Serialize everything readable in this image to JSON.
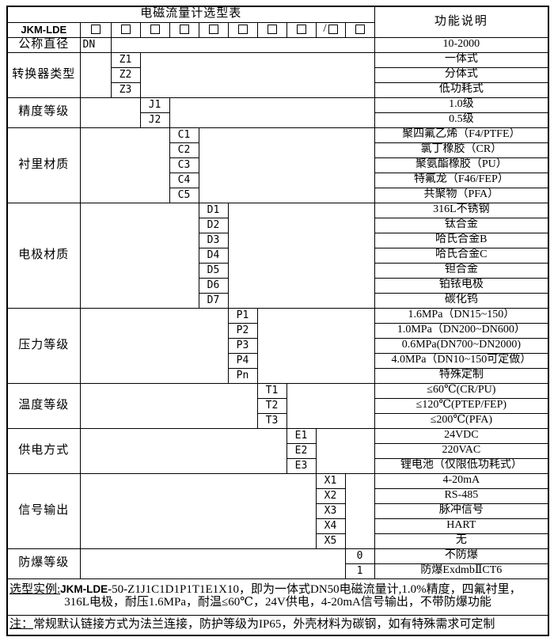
{
  "colors": {
    "background": "#ffffff",
    "border": "#000000",
    "text": "#000000"
  },
  "table": {
    "title": "电磁流量计选型表",
    "function_header": "功能说明",
    "model_prefix": "JKM-LDE",
    "checkbox_count": 10,
    "slash": "/",
    "slash_cell": 9
  },
  "groups": [
    {
      "label": "公称直径",
      "col": 1,
      "rows": [
        {
          "code": "DN",
          "desc": "10-2000"
        }
      ]
    },
    {
      "label": "转换器类型",
      "col": 2,
      "rows": [
        {
          "code": "Z1",
          "desc": "一体式"
        },
        {
          "code": "Z2",
          "desc": "分体式"
        },
        {
          "code": "Z3",
          "desc": "低功耗式"
        }
      ]
    },
    {
      "label": "精度等级",
      "col": 3,
      "rows": [
        {
          "code": "J1",
          "desc": "1.0级"
        },
        {
          "code": "J2",
          "desc": "0.5级"
        }
      ]
    },
    {
      "label": "衬里材质",
      "col": 4,
      "rows": [
        {
          "code": "C1",
          "desc": "聚四氟乙烯（F4/PTFE）"
        },
        {
          "code": "C2",
          "desc": "氯丁橡胶（CR）"
        },
        {
          "code": "C3",
          "desc": "聚氨酯橡胶（PU）"
        },
        {
          "code": "C4",
          "desc": "特氟龙（F46/FEP）"
        },
        {
          "code": "C5",
          "desc": "共聚物（PFA）"
        }
      ]
    },
    {
      "label": "电极材质",
      "col": 5,
      "rows": [
        {
          "code": "D1",
          "desc": "316L不锈钢"
        },
        {
          "code": "D2",
          "desc": "钛合金"
        },
        {
          "code": "D3",
          "desc": "哈氏合金B"
        },
        {
          "code": "D4",
          "desc": "哈氏合金C"
        },
        {
          "code": "D5",
          "desc": "钽合金"
        },
        {
          "code": "D6",
          "desc": "铂铱电极"
        },
        {
          "code": "D7",
          "desc": "碳化钨"
        }
      ]
    },
    {
      "label": "压力等级",
      "col": 6,
      "rows": [
        {
          "code": "P1",
          "desc": "1.6MPa（DN15~150）"
        },
        {
          "code": "P2",
          "desc": "1.0MPa（DN200~DN600）"
        },
        {
          "code": "P3",
          "desc": "0.6MPa(DN700~DN2000)"
        },
        {
          "code": "P4",
          "desc": "4.0MPa（DN10~150可定做）"
        },
        {
          "code": "Pn",
          "desc": "特殊定制"
        }
      ]
    },
    {
      "label": "温度等级",
      "col": 7,
      "rows": [
        {
          "code": "T1",
          "desc": "≤60℃(CR/PU)"
        },
        {
          "code": "T2",
          "desc": "≤120℃(PTEP/FEP)"
        },
        {
          "code": "T3",
          "desc": "≤200℃(PFA)"
        }
      ]
    },
    {
      "label": "供电方式",
      "col": 8,
      "rows": [
        {
          "code": "E1",
          "desc": "24VDC"
        },
        {
          "code": "E2",
          "desc": "220VAC"
        },
        {
          "code": "E3",
          "desc": "锂电池（仅限低功耗式）"
        }
      ]
    },
    {
      "label": "信号输出",
      "col": 9,
      "rows": [
        {
          "code": "X1",
          "desc": "4-20mA"
        },
        {
          "code": "X2",
          "desc": "RS-485"
        },
        {
          "code": "X3",
          "desc": "脉冲信号"
        },
        {
          "code": "X4",
          "desc": "HART"
        },
        {
          "code": "X5",
          "desc": "无"
        }
      ]
    },
    {
      "label": "防爆等级",
      "col": 10,
      "rows": [
        {
          "code": "0",
          "desc": "不防爆"
        },
        {
          "code": "1",
          "desc": "防爆ExdmbⅡCT6"
        }
      ]
    }
  ],
  "example": {
    "prefix": "选型实例:",
    "model": "JKM-LDE",
    "line1_rest": "-50-Z1J1C1D1P1T1E1X10，即为一体式DN50电磁流量计,1.0%精度，四氟衬里，",
    "line2": "316L电极，耐压1.6MPa，耐温≤60℃，24V供电，4-20mA信号输出，不带防爆功能"
  },
  "note": {
    "prefix": "注：",
    "text": "常规默认链接方式为法兰连接，防护等级为IP65，外壳材料为碳钢，如有特殊需求可定制"
  }
}
